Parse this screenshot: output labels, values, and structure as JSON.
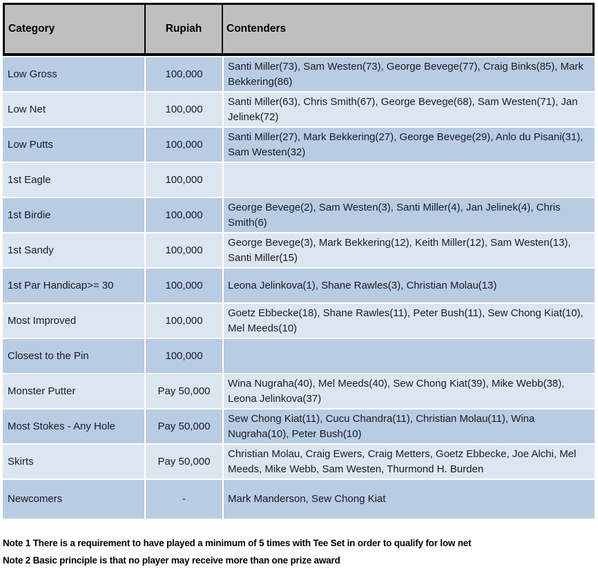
{
  "table": {
    "columns": [
      {
        "label": "Category"
      },
      {
        "label": "Rupiah"
      },
      {
        "label": "Contenders"
      }
    ],
    "rows": [
      {
        "category": "Low Gross",
        "rupiah": "100,000",
        "contenders": "Santi Miller(73), Sam Westen(73), George Bevege(77), Craig Binks(85), Mark Bekkering(86)"
      },
      {
        "category": "Low Net",
        "rupiah": "100,000",
        "contenders": "Santi Miller(63), Chris Smith(67), George Bevege(68), Sam Westen(71), Jan Jelinek(72)"
      },
      {
        "category": "Low Putts",
        "rupiah": "100,000",
        "contenders": "Santi Miller(27), Mark Bekkering(27), George Bevege(29), Anlo du Pisani(31), Sam Westen(32)"
      },
      {
        "category": "1st Eagle",
        "rupiah": "100,000",
        "contenders": ""
      },
      {
        "category": "1st Birdie",
        "rupiah": "100,000",
        "contenders": "George Bevege(2), Sam Westen(3), Santi Miller(4), Jan Jelinek(4), Chris Smith(6)"
      },
      {
        "category": "1st Sandy",
        "rupiah": "100,000",
        "contenders": "George Bevege(3), Mark Bekkering(12), Keith Miller(12), Sam Westen(13), Santi Miller(15)"
      },
      {
        "category": "1st Par Handicap>= 30",
        "rupiah": "100,000",
        "contenders": "Leona Jelinkova(1), Shane Rawles(3), Christian Molau(13)"
      },
      {
        "category": "Most Improved",
        "rupiah": "100,000",
        "contenders": "Goetz Ebbecke(18), Shane Rawles(11), Peter Bush(11), Sew Chong Kiat(10), Mel Meeds(10)"
      },
      {
        "category": "Closest to the Pin",
        "rupiah": "100,000",
        "contenders": ""
      },
      {
        "category": "Monster Putter",
        "rupiah": "Pay 50,000",
        "contenders": "Wina Nugraha(40), Mel Meeds(40), Sew Chong Kiat(39), Mike Webb(38), Leona Jelinkova(37)"
      },
      {
        "category": "Most Stokes - Any Hole",
        "rupiah": "Pay 50,000",
        "contenders": "Sew Chong Kiat(11), Cucu Chandra(11), Christian Molau(11), Wina Nugraha(10), Peter Bush(10)"
      },
      {
        "category": "Skirts",
        "rupiah": "Pay 50,000",
        "contenders": "Christian Molau, Craig Ewers, Craig Metters, Goetz Ebbecke, Joe Alchi, Mel Meeds, Mike Webb, Sam Westen, Thurmond H. Burden"
      },
      {
        "category": "Newcomers",
        "rupiah": "-",
        "contenders": "Mark Manderson, Sew Chong Kiat"
      }
    ]
  },
  "notes": [
    "Note 1 There is a requirement to have played a minimum of 5 times with Tee Set in order to qualify for low net",
    "Note 2 Basic principle is that no player may receive more than one prize award"
  ],
  "colors": {
    "header_bg": "#BFBFBF",
    "row_dark": "#B8CCE4",
    "row_light": "#DCE6F1",
    "border": "#000000",
    "separator": "#FFFFFF"
  }
}
